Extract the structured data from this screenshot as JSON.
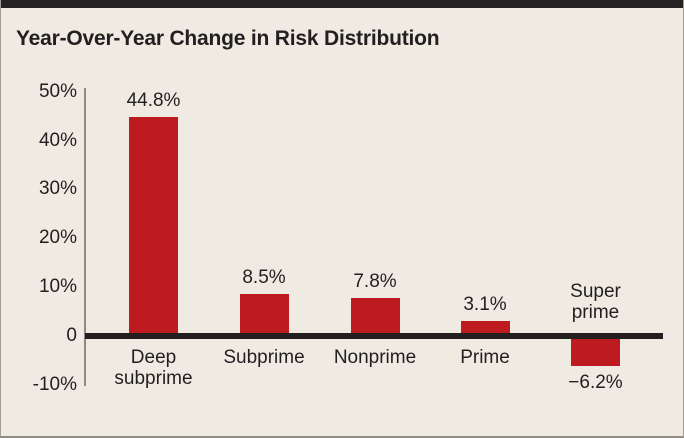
{
  "title": "Year-Over-Year Change in Risk Distribution",
  "colors": {
    "background": "#efeae2",
    "top_bar": "#262122",
    "bar": "#be1b21",
    "axis_line": "#8d8a85",
    "zero_line": "#231f20",
    "text": "#231f20",
    "border": "#a29e97"
  },
  "chart_data": {
    "type": "bar",
    "title": "Year-Over-Year Change in Risk Distribution",
    "categories": [
      "Deep subprime",
      "Subprime",
      "Nonprime",
      "Prime",
      "Super prime"
    ],
    "category_lines": [
      [
        "Deep",
        "subprime"
      ],
      [
        "Subprime"
      ],
      [
        "Nonprime"
      ],
      [
        "Prime"
      ],
      [
        "Super",
        "prime"
      ]
    ],
    "values": [
      44.8,
      8.5,
      7.8,
      3.1,
      -6.2
    ],
    "value_labels": [
      "44.8%",
      "8.5%",
      "7.8%",
      "3.1%",
      "−6.2%"
    ],
    "xlabel": "",
    "ylabel": "",
    "ylim": [
      -10,
      50
    ],
    "yticks": [
      50,
      40,
      30,
      20,
      10,
      0,
      -10
    ],
    "ytick_labels": [
      "50%",
      "40%",
      "30%",
      "20%",
      "10%",
      "0",
      "-10%"
    ],
    "grid": false,
    "legend": false,
    "bar_color": "#be1b21"
  }
}
